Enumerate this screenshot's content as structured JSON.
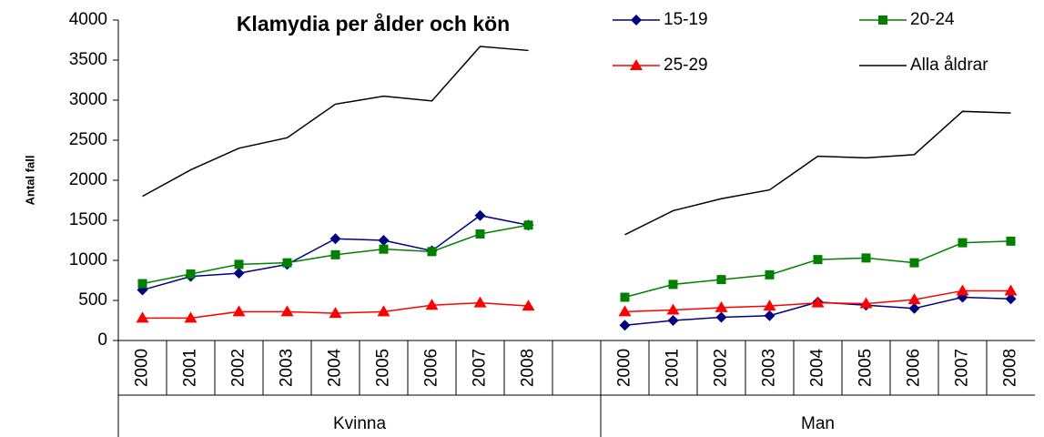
{
  "chart_data": {
    "type": "line",
    "title": "Klamydia per ålder och kön",
    "y_label": "Antal fall",
    "categories": [
      "2000",
      "2001",
      "2002",
      "2003",
      "2004",
      "2005",
      "2006",
      "2007",
      "2008",
      null,
      "2000",
      "2001",
      "2002",
      "2003",
      "2004",
      "2005",
      "2006",
      "2007",
      "2008"
    ],
    "groups": [
      "Kvinna",
      "Man"
    ],
    "series": [
      {
        "name": "15-19",
        "color": "#000080",
        "marker": "diamond",
        "values": [
          630,
          800,
          840,
          950,
          1270,
          1250,
          1120,
          1560,
          1440,
          null,
          190,
          250,
          290,
          310,
          480,
          440,
          400,
          540,
          520
        ]
      },
      {
        "name": "20-24",
        "color": "#008000",
        "marker": "square",
        "values": [
          710,
          830,
          950,
          970,
          1070,
          1140,
          1110,
          1330,
          1440,
          null,
          540,
          700,
          760,
          820,
          1010,
          1030,
          970,
          1220,
          1240
        ]
      },
      {
        "name": "25-29",
        "color": "#ff0000",
        "marker": "triangle",
        "values": [
          280,
          280,
          360,
          360,
          340,
          360,
          440,
          470,
          430,
          null,
          360,
          380,
          410,
          430,
          470,
          460,
          510,
          620,
          620
        ]
      },
      {
        "name": "Alla åldrar",
        "color": "#000000",
        "marker": "none",
        "values": [
          1800,
          2130,
          2400,
          2530,
          2950,
          3050,
          2990,
          3670,
          3620,
          null,
          1320,
          1620,
          1770,
          1880,
          2300,
          2280,
          2320,
          2860,
          2840
        ]
      }
    ],
    "ylim": [
      0,
      4000
    ],
    "yticks": [
      0,
      500,
      1000,
      1500,
      2000,
      2500,
      3000,
      3500,
      4000
    ],
    "grid": false,
    "legend": "top-right"
  }
}
